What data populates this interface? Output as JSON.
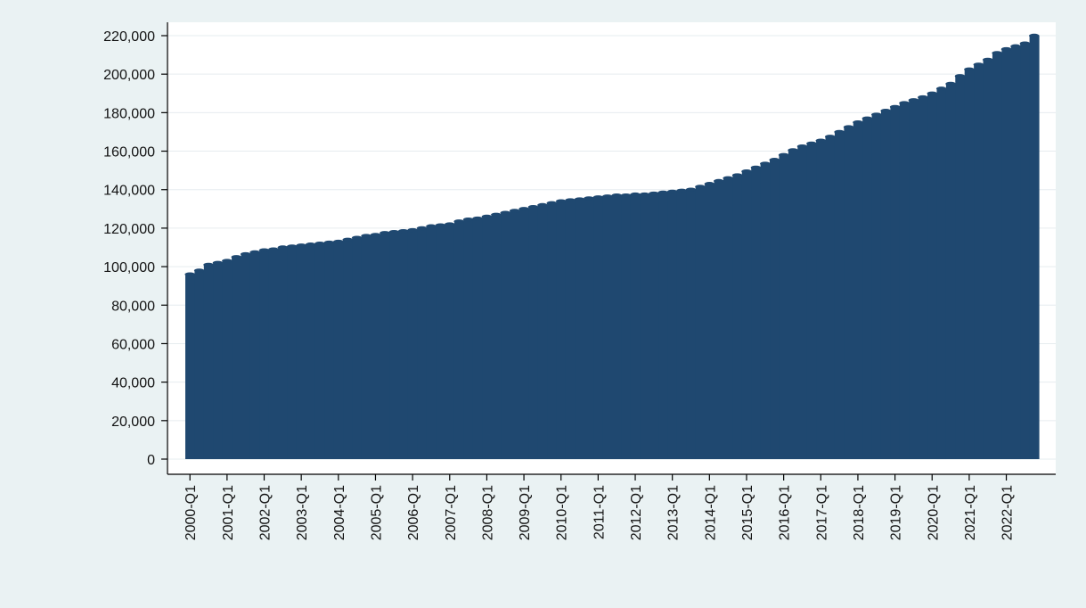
{
  "chart_data": {
    "type": "bar",
    "title": "",
    "xlabel": "",
    "ylabel": "",
    "ylim": [
      0,
      220000
    ],
    "grid": true,
    "legend": "none",
    "colors": {
      "background": "#eaf2f3",
      "plot_background": "#ffffff",
      "bar": "#1f4870",
      "grid": "#e6ecef",
      "axis": "#000000"
    },
    "y_ticks": [
      {
        "value": 0,
        "label": "0"
      },
      {
        "value": 20000,
        "label": "20,000"
      },
      {
        "value": 40000,
        "label": "40,000"
      },
      {
        "value": 60000,
        "label": "60,000"
      },
      {
        "value": 80000,
        "label": "80,000"
      },
      {
        "value": 100000,
        "label": "100,000"
      },
      {
        "value": 120000,
        "label": "120,000"
      },
      {
        "value": 140000,
        "label": "140,000"
      },
      {
        "value": 160000,
        "label": "160,000"
      },
      {
        "value": 180000,
        "label": "180,000"
      },
      {
        "value": 200000,
        "label": "200,000"
      },
      {
        "value": 220000,
        "label": "220,000"
      }
    ],
    "x_tick_labels": [
      "2000-Q1",
      "2001-Q1",
      "2002-Q1",
      "2003-Q1",
      "2004-Q1",
      "2005-Q1",
      "2006-Q1",
      "2007-Q1",
      "2008-Q1",
      "2009-Q1",
      "2010-Q1",
      "2011-Q1",
      "2012-Q1",
      "2013-Q1",
      "2014-Q1",
      "2015-Q1",
      "2016-Q1",
      "2017-Q1",
      "2018-Q1",
      "2019-Q1",
      "2020-Q1",
      "2021-Q1",
      "2022-Q1"
    ],
    "categories": [
      "2000-Q1",
      "2000-Q2",
      "2000-Q3",
      "2000-Q4",
      "2001-Q1",
      "2001-Q2",
      "2001-Q3",
      "2001-Q4",
      "2002-Q1",
      "2002-Q2",
      "2002-Q3",
      "2002-Q4",
      "2003-Q1",
      "2003-Q2",
      "2003-Q3",
      "2003-Q4",
      "2004-Q1",
      "2004-Q2",
      "2004-Q3",
      "2004-Q4",
      "2005-Q1",
      "2005-Q2",
      "2005-Q3",
      "2005-Q4",
      "2006-Q1",
      "2006-Q2",
      "2006-Q3",
      "2006-Q4",
      "2007-Q1",
      "2007-Q2",
      "2007-Q3",
      "2007-Q4",
      "2008-Q1",
      "2008-Q2",
      "2008-Q3",
      "2008-Q4",
      "2009-Q1",
      "2009-Q2",
      "2009-Q3",
      "2009-Q4",
      "2010-Q1",
      "2010-Q2",
      "2010-Q3",
      "2010-Q4",
      "2011-Q1",
      "2011-Q2",
      "2011-Q3",
      "2011-Q4",
      "2012-Q1",
      "2012-Q2",
      "2012-Q3",
      "2012-Q4",
      "2013-Q1",
      "2013-Q2",
      "2013-Q3",
      "2013-Q4",
      "2014-Q1",
      "2014-Q2",
      "2014-Q3",
      "2014-Q4",
      "2015-Q1",
      "2015-Q2",
      "2015-Q3",
      "2015-Q4",
      "2016-Q1",
      "2016-Q2",
      "2016-Q3",
      "2016-Q4",
      "2017-Q1",
      "2017-Q2",
      "2017-Q3",
      "2017-Q4",
      "2018-Q1",
      "2018-Q2",
      "2018-Q3",
      "2018-Q4",
      "2019-Q1",
      "2019-Q2",
      "2019-Q3",
      "2019-Q4",
      "2020-Q1",
      "2020-Q2",
      "2020-Q3",
      "2020-Q4",
      "2021-Q1",
      "2021-Q2",
      "2021-Q3",
      "2021-Q4",
      "2022-Q1",
      "2022-Q2",
      "2022-Q3",
      "2022-Q4"
    ],
    "values": [
      96000,
      98000,
      101000,
      102000,
      103000,
      105000,
      106500,
      107500,
      108500,
      109000,
      110000,
      110500,
      111000,
      111500,
      112000,
      112500,
      113000,
      114000,
      115000,
      116000,
      116500,
      117500,
      118000,
      118500,
      119000,
      120000,
      121000,
      121500,
      122000,
      123500,
      124500,
      125000,
      126000,
      127000,
      128000,
      129000,
      130000,
      131000,
      132000,
      133000,
      134000,
      134500,
      135000,
      135500,
      136000,
      136500,
      137000,
      137000,
      137500,
      137500,
      138000,
      138500,
      139000,
      139500,
      140000,
      141500,
      143000,
      144500,
      146000,
      147500,
      149500,
      151500,
      153500,
      155500,
      158000,
      160500,
      162500,
      164000,
      165500,
      167500,
      170000,
      172500,
      175000,
      177000,
      179000,
      181000,
      183000,
      185000,
      186500,
      188000,
      190000,
      192500,
      195000,
      199000,
      202500,
      205000,
      207500,
      211000,
      213000,
      214500,
      216000,
      220000
    ]
  }
}
